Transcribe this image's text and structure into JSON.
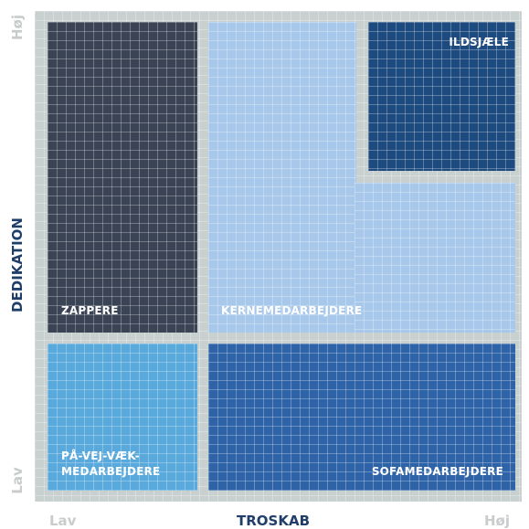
{
  "diagram": {
    "x_axis": {
      "title": "TROSKAB",
      "low": "Lav",
      "high": "Høj"
    },
    "y_axis": {
      "title": "DEDIKATION",
      "low": "Lav",
      "high": "Høj"
    },
    "segments": {
      "zappere": {
        "label": "ZAPPERE",
        "color": "#3b4455"
      },
      "kernemedarbejdere": {
        "label": "KERNEMEDARBEJDERE",
        "color": "#a7c8ea"
      },
      "ildsjaele": {
        "label": "ILDSJÆLE",
        "color": "#1e4b7f"
      },
      "paa_vej_vaek": {
        "label_line1": "PÅ-VEJ-VÆK-",
        "label_line2": "MEDARBEJDERE",
        "color": "#5aa9dc"
      },
      "sofamedarbejdere": {
        "label": "SOFAMEDARBEJDERE",
        "color": "#2f63a8"
      }
    }
  }
}
